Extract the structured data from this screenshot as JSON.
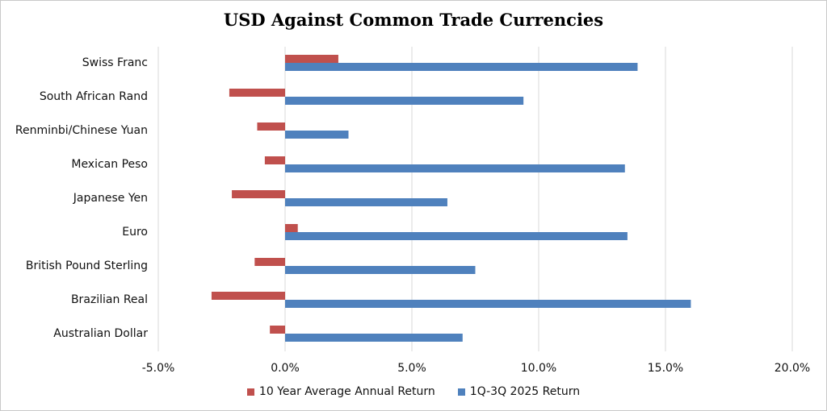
{
  "chart_data": {
    "type": "bar",
    "orientation": "horizontal",
    "title": "USD Against Common Trade Currencies",
    "categories": [
      "Swiss Franc",
      "South African Rand",
      "Renminbi/Chinese Yuan",
      "Mexican Peso",
      "Japanese Yen",
      "Euro",
      "British Pound Sterling",
      "Brazilian Real",
      "Australian Dollar"
    ],
    "series": [
      {
        "name": "10 Year Average Annual Return",
        "color": "#c0504d",
        "values": [
          2.1,
          -2.2,
          -1.1,
          -0.8,
          -2.1,
          0.5,
          -1.2,
          -2.9,
          -0.6
        ]
      },
      {
        "name": "1Q-3Q 2025 Return",
        "color": "#4f81bd",
        "values": [
          13.9,
          9.4,
          2.5,
          13.4,
          6.4,
          13.5,
          7.5,
          16.0,
          7.0
        ]
      }
    ],
    "xlim": [
      -5,
      20
    ],
    "xticks": [
      -5,
      0,
      5,
      10,
      15,
      20
    ],
    "xtick_labels": [
      "-5.0%",
      "0.0%",
      "5.0%",
      "10.0%",
      "15.0%",
      "20.0%"
    ],
    "grid": true,
    "legend_position": "bottom"
  }
}
